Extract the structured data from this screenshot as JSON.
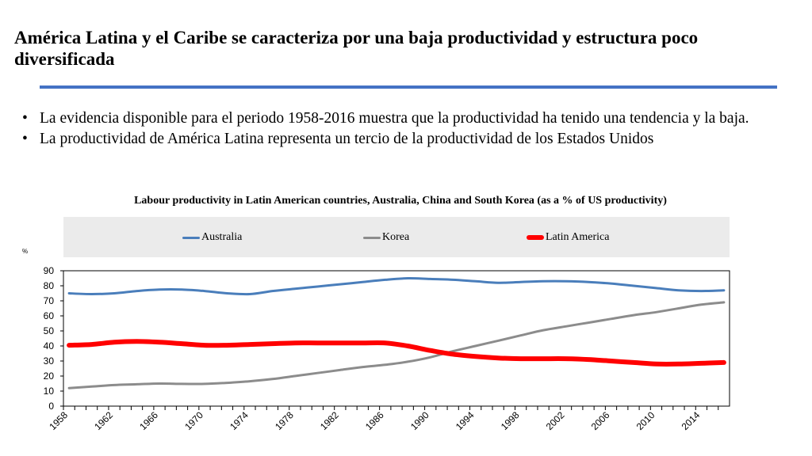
{
  "slide": {
    "title": "América Latina y el Caribe se caracteriza por una baja productividad y estructura poco diversificada",
    "bullets": [
      "La evidencia disponible para el periodo 1958-2016 muestra que la productividad ha tenido una tendencia y la baja.",
      "La productividad de América Latina representa un tercio de la productividad de los Estados Unidos"
    ],
    "bullet_glyph": "•"
  },
  "chart_data": {
    "type": "line",
    "title": "Labour productivity in Latin American countries, Australia, China and South Korea (as a % of US productivity)",
    "ylabel": "%",
    "xlabel": "",
    "ylim": [
      0,
      90
    ],
    "yticks": [
      "0",
      "10",
      "20",
      "30",
      "40",
      "50",
      "60",
      "70",
      "80",
      "90"
    ],
    "xlim": [
      1958,
      2016
    ],
    "xticks": [
      "1958",
      "1962",
      "1966",
      "1970",
      "1974",
      "1978",
      "1982",
      "1986",
      "1990",
      "1994",
      "1998",
      "2002",
      "2006",
      "2010",
      "2014"
    ],
    "legend_position": "top",
    "x": [
      1958,
      1960,
      1962,
      1964,
      1966,
      1968,
      1970,
      1972,
      1974,
      1976,
      1978,
      1980,
      1982,
      1984,
      1986,
      1988,
      1990,
      1992,
      1994,
      1996,
      1998,
      2000,
      2002,
      2004,
      2006,
      2008,
      2010,
      2012,
      2014,
      2016
    ],
    "series": [
      {
        "name": "Australia",
        "color": "#4a7ebb",
        "width": 3,
        "values": [
          75,
          74.5,
          75,
          76.5,
          77.5,
          77.5,
          76.5,
          75,
          74.5,
          76.5,
          78,
          79.5,
          81,
          82.5,
          84,
          85,
          84.5,
          84,
          83,
          82,
          82.5,
          83,
          83,
          82.5,
          81.5,
          80,
          78.5,
          77,
          76.5,
          77
        ]
      },
      {
        "name": "Korea",
        "color": "#8c8c8c",
        "width": 3,
        "values": [
          12,
          13,
          14,
          14.5,
          15,
          14.8,
          14.8,
          15.5,
          16.5,
          18,
          20,
          22,
          24,
          26,
          27.5,
          29.5,
          32.5,
          36.5,
          40,
          43.5,
          47,
          50.5,
          53,
          55.5,
          58,
          60.5,
          62.5,
          65,
          67.5,
          69
        ]
      },
      {
        "name": "Latin America",
        "color": "#ff0000",
        "width": 6,
        "values": [
          40.5,
          41,
          42.5,
          43,
          42.5,
          41.5,
          40.5,
          40.5,
          41,
          41.5,
          42,
          42,
          42,
          42,
          42,
          40,
          37,
          34.5,
          33,
          32,
          31.5,
          31.5,
          31.5,
          31,
          30,
          29,
          28,
          28,
          28.5,
          29
        ]
      }
    ]
  }
}
